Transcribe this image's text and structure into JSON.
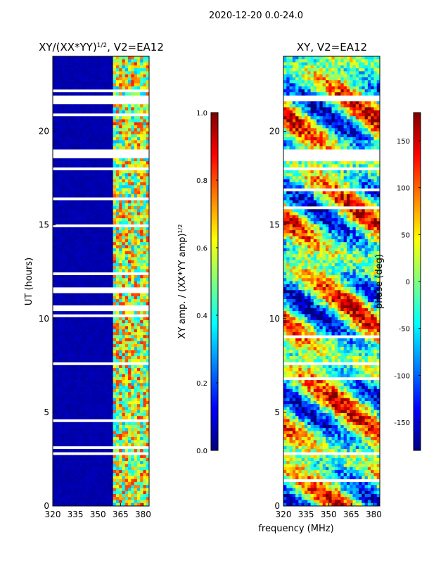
{
  "suptitle": "2020-12-20 0.0-24.0",
  "panels": [
    {
      "title": "XY/(XX*YY)",
      "title_sup": "1/2",
      "title_suffix": ", V2=EA12"
    },
    {
      "title": "XY, V2=EA12"
    }
  ],
  "colorbars": [
    {
      "label": "XY amp. / (XX*YY amp)",
      "label_sup": "1/2",
      "ticks": [
        "0.0",
        "0.2",
        "0.4",
        "0.6",
        "0.8",
        "1.0"
      ],
      "vmin": 0.0,
      "vmax": 1.0
    },
    {
      "label": "phase (deg)",
      "ticks": [
        "-150",
        "-100",
        "-50",
        "0",
        "50",
        "100",
        "150"
      ],
      "vmin": -180,
      "vmax": 180
    }
  ],
  "chart_data": [
    {
      "type": "heatmap",
      "title": "XY/(XX*YY)^1/2, V2=EA12",
      "xlabel": "frequency (MHz)",
      "ylabel": "UT (hours)",
      "x_range": [
        320,
        384
      ],
      "y_range": [
        0,
        24
      ],
      "x_ticks": [
        320,
        335,
        350,
        365,
        380
      ],
      "y_ticks": [
        0,
        5,
        10,
        15,
        20
      ],
      "colormap": "jet",
      "vmin": 0.0,
      "vmax": 1.0,
      "masked_hours": [
        [
          18.6,
          19.0
        ],
        [
          21.6,
          21.9
        ],
        [
          7.45,
          7.62
        ],
        [
          2.65,
          2.85
        ]
      ],
      "description_values": {
        "low_band_mean": 0.03,
        "high_band_range": [
          0.3,
          0.85
        ],
        "high_band_start_mhz": 361
      }
    },
    {
      "type": "heatmap",
      "title": "XY, V2=EA12",
      "xlabel": "frequency (MHz)",
      "ylabel": "",
      "x_range": [
        320,
        384
      ],
      "y_range": [
        0,
        24
      ],
      "x_ticks": [
        320,
        335,
        350,
        365,
        380
      ],
      "y_ticks": [
        0,
        5,
        10,
        15,
        20
      ],
      "colormap": "jet",
      "vmin": -180,
      "vmax": 180,
      "masked_hours": [
        [
          18.6,
          19.0
        ],
        [
          21.6,
          21.9
        ],
        [
          7.45,
          7.62
        ],
        [
          2.65,
          2.85
        ]
      ]
    }
  ]
}
